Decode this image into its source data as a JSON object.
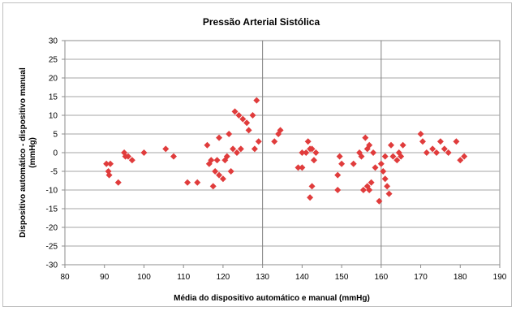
{
  "chart_data": {
    "type": "scatter",
    "title": "Pressão Arterial Sistólica",
    "xlabel": "Média do dispositivo automático e manual (mmHg)",
    "ylabel_line1": "Dispositivo automático - dispositivo manual",
    "ylabel_line2": "(mmHg)",
    "xlim": [
      80,
      190
    ],
    "ylim": [
      -30,
      30
    ],
    "xticks": [
      80,
      90,
      100,
      110,
      120,
      130,
      140,
      150,
      160,
      170,
      180,
      190
    ],
    "yticks": [
      -30,
      -25,
      -20,
      -15,
      -10,
      -5,
      0,
      5,
      10,
      15,
      20,
      25,
      30
    ],
    "gridlines_y": [
      -25,
      -20,
      -15,
      -10,
      -5,
      0,
      5,
      10,
      15,
      20,
      25
    ],
    "vertical_lines_x": [
      130,
      160
    ],
    "marker_color": "#e03c3c",
    "marker": "diamond",
    "points": [
      [
        90.5,
        -3
      ],
      [
        91,
        -5
      ],
      [
        91.2,
        -6
      ],
      [
        91.5,
        -3
      ],
      [
        93.5,
        -8
      ],
      [
        95,
        0
      ],
      [
        95.3,
        -1
      ],
      [
        96,
        -1
      ],
      [
        97,
        -2
      ],
      [
        100,
        0
      ],
      [
        105.5,
        1
      ],
      [
        107.5,
        -1
      ],
      [
        111,
        -8
      ],
      [
        113.5,
        -8
      ],
      [
        116,
        2
      ],
      [
        116.5,
        -3
      ],
      [
        117,
        -2
      ],
      [
        117.5,
        -9
      ],
      [
        118,
        -5
      ],
      [
        118.5,
        -2
      ],
      [
        119,
        4
      ],
      [
        119,
        -6
      ],
      [
        120,
        -7
      ],
      [
        120.5,
        -2
      ],
      [
        121,
        -1
      ],
      [
        121.5,
        5
      ],
      [
        122,
        -5
      ],
      [
        122.5,
        1
      ],
      [
        123,
        11
      ],
      [
        123.5,
        0
      ],
      [
        124,
        10
      ],
      [
        124.5,
        1
      ],
      [
        125,
        9
      ],
      [
        126,
        8
      ],
      [
        126.5,
        6
      ],
      [
        127.5,
        10
      ],
      [
        128,
        1
      ],
      [
        128.5,
        14
      ],
      [
        129,
        3
      ],
      [
        133,
        3
      ],
      [
        134,
        5
      ],
      [
        134.5,
        6
      ],
      [
        139,
        -4
      ],
      [
        140,
        -4
      ],
      [
        140,
        0
      ],
      [
        141,
        0
      ],
      [
        141.5,
        3
      ],
      [
        142,
        1
      ],
      [
        142,
        -12
      ],
      [
        142.5,
        1
      ],
      [
        142.5,
        -9
      ],
      [
        143,
        -2
      ],
      [
        143.5,
        0
      ],
      [
        149,
        -10
      ],
      [
        149,
        -6
      ],
      [
        149.5,
        -1
      ],
      [
        150,
        -3
      ],
      [
        153,
        -3
      ],
      [
        154.5,
        0
      ],
      [
        155,
        -1
      ],
      [
        155.5,
        -10
      ],
      [
        156,
        4
      ],
      [
        156.5,
        1
      ],
      [
        156.5,
        -9
      ],
      [
        157,
        2
      ],
      [
        157,
        -10
      ],
      [
        157.5,
        -8
      ],
      [
        158,
        0
      ],
      [
        158.5,
        -4
      ],
      [
        159.5,
        -13
      ],
      [
        160,
        -3
      ],
      [
        160.5,
        -5
      ],
      [
        161,
        -1
      ],
      [
        161,
        -7
      ],
      [
        161.5,
        -9
      ],
      [
        162,
        -11
      ],
      [
        162.5,
        2
      ],
      [
        163,
        -1
      ],
      [
        164,
        -2
      ],
      [
        164.5,
        0
      ],
      [
        165,
        -1
      ],
      [
        165.5,
        2
      ],
      [
        170,
        5
      ],
      [
        170.5,
        3
      ],
      [
        171.5,
        0
      ],
      [
        173,
        1
      ],
      [
        174,
        0
      ],
      [
        175,
        3
      ],
      [
        176,
        1
      ],
      [
        177,
        0
      ],
      [
        179,
        3
      ],
      [
        180,
        -2
      ],
      [
        181,
        -1
      ]
    ]
  }
}
